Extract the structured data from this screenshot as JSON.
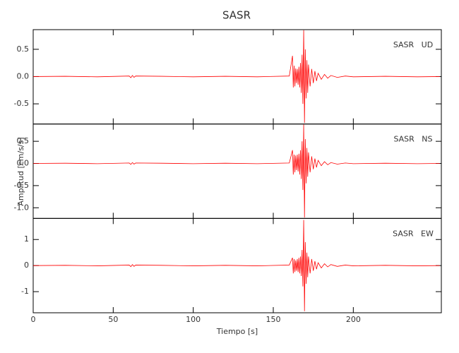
{
  "chart_data": [
    {
      "type": "line",
      "title": "SASR",
      "label": "SASR   UD",
      "x": [
        0,
        20,
        40,
        60,
        61,
        62,
        63,
        64,
        80,
        100,
        120,
        140,
        160,
        162,
        162.5,
        163,
        163.5,
        164,
        164.5,
        165,
        165.5,
        166,
        166.5,
        167,
        167.5,
        168,
        168.5,
        169,
        169.5,
        170,
        170.5,
        171,
        171.5,
        172,
        173,
        174,
        175,
        176,
        177,
        178,
        180,
        182,
        184,
        186,
        190,
        195,
        200,
        220,
        240,
        254
      ],
      "series": [
        {
          "color": "#ff0000",
          "values": [
            0,
            0.005,
            -0.005,
            0.01,
            -0.02,
            0.02,
            -0.015,
            0.01,
            0.005,
            -0.005,
            0.005,
            -0.005,
            0.01,
            0.38,
            -0.2,
            0.2,
            -0.18,
            0.15,
            -0.12,
            0.14,
            -0.15,
            0.18,
            -0.2,
            0.25,
            -0.3,
            0.4,
            -0.5,
            0.85,
            -0.85,
            0.5,
            -0.4,
            0.3,
            -0.3,
            0.22,
            -0.18,
            0.14,
            -0.12,
            0.1,
            -0.08,
            0.06,
            -0.05,
            0.04,
            -0.03,
            0.02,
            -0.015,
            0.01,
            -0.005,
            0.005,
            -0.005,
            0
          ]
        }
      ],
      "xlim": [
        0,
        255
      ],
      "ylim": [
        -0.87,
        0.86
      ],
      "yticks": [
        {
          "value": -0.5,
          "label": "-0.5"
        },
        {
          "value": 0,
          "label": "0.0"
        },
        0.5
      ]
    },
    {
      "type": "line",
      "label": "SASR   NS",
      "ylabel": "Amplitud [cm/s/s]",
      "x": [
        0,
        20,
        40,
        60,
        61,
        62,
        63,
        64,
        80,
        100,
        120,
        140,
        160,
        162,
        162.5,
        163,
        163.5,
        164,
        164.5,
        165,
        165.5,
        166,
        166.5,
        167,
        167.5,
        168,
        168.5,
        169,
        169.5,
        170,
        170.5,
        171,
        171.5,
        172,
        173,
        174,
        175,
        176,
        177,
        178,
        180,
        182,
        184,
        186,
        190,
        195,
        200,
        220,
        240,
        254
      ],
      "series": [
        {
          "color": "#ff0000",
          "values": [
            0,
            0.005,
            -0.005,
            0.01,
            -0.02,
            0.02,
            -0.015,
            0.01,
            0.005,
            -0.005,
            0.005,
            -0.005,
            0.01,
            0.3,
            -0.25,
            0.2,
            -0.2,
            0.18,
            -0.15,
            0.2,
            -0.18,
            0.22,
            -0.25,
            0.3,
            -0.35,
            0.5,
            -0.6,
            0.88,
            -1.22,
            0.55,
            -0.45,
            0.35,
            -0.3,
            0.25,
            -0.2,
            0.16,
            -0.13,
            0.11,
            -0.09,
            0.07,
            -0.05,
            0.04,
            -0.03,
            0.02,
            -0.015,
            0.01,
            -0.005,
            0.005,
            -0.005,
            0
          ]
        }
      ],
      "xlim": [
        0,
        255
      ],
      "ylim": [
        -1.24,
        0.89
      ],
      "yticks": [
        {
          "value": -1,
          "label": "-1.0"
        },
        {
          "value": -0.5,
          "label": "-0.5"
        },
        {
          "value": 0,
          "label": "0.0"
        },
        0.5
      ]
    },
    {
      "type": "line",
      "label": "SASR   EW",
      "xlabel": "Tiempo [s]",
      "x": [
        0,
        20,
        40,
        60,
        61,
        62,
        63,
        64,
        80,
        100,
        120,
        140,
        160,
        162,
        162.5,
        163,
        163.5,
        164,
        164.5,
        165,
        165.5,
        166,
        166.5,
        167,
        167.5,
        168,
        168.5,
        169,
        169.5,
        170,
        170.5,
        171,
        171.5,
        172,
        173,
        174,
        175,
        176,
        177,
        178,
        180,
        182,
        184,
        186,
        190,
        195,
        200,
        220,
        240,
        254
      ],
      "series": [
        {
          "color": "#ff0000",
          "values": [
            0,
            0.01,
            -0.01,
            0.02,
            -0.04,
            0.04,
            -0.03,
            0.02,
            0.01,
            -0.01,
            0.01,
            -0.01,
            0.02,
            0.3,
            -0.3,
            0.25,
            -0.25,
            0.2,
            -0.2,
            0.25,
            -0.25,
            0.3,
            -0.3,
            0.35,
            -0.4,
            0.6,
            -0.8,
            1.75,
            -1.75,
            0.9,
            -0.7,
            0.5,
            -0.45,
            0.35,
            -0.3,
            0.25,
            -0.2,
            0.17,
            -0.14,
            0.11,
            -0.09,
            0.07,
            -0.05,
            0.04,
            -0.03,
            0.02,
            -0.01,
            0.01,
            -0.01,
            0
          ]
        }
      ],
      "xlim": [
        0,
        255
      ],
      "ylim": [
        -1.81,
        1.81
      ],
      "xticks": [
        0,
        50,
        100,
        150,
        200
      ],
      "yticks": [
        -1,
        0,
        1
      ]
    }
  ]
}
